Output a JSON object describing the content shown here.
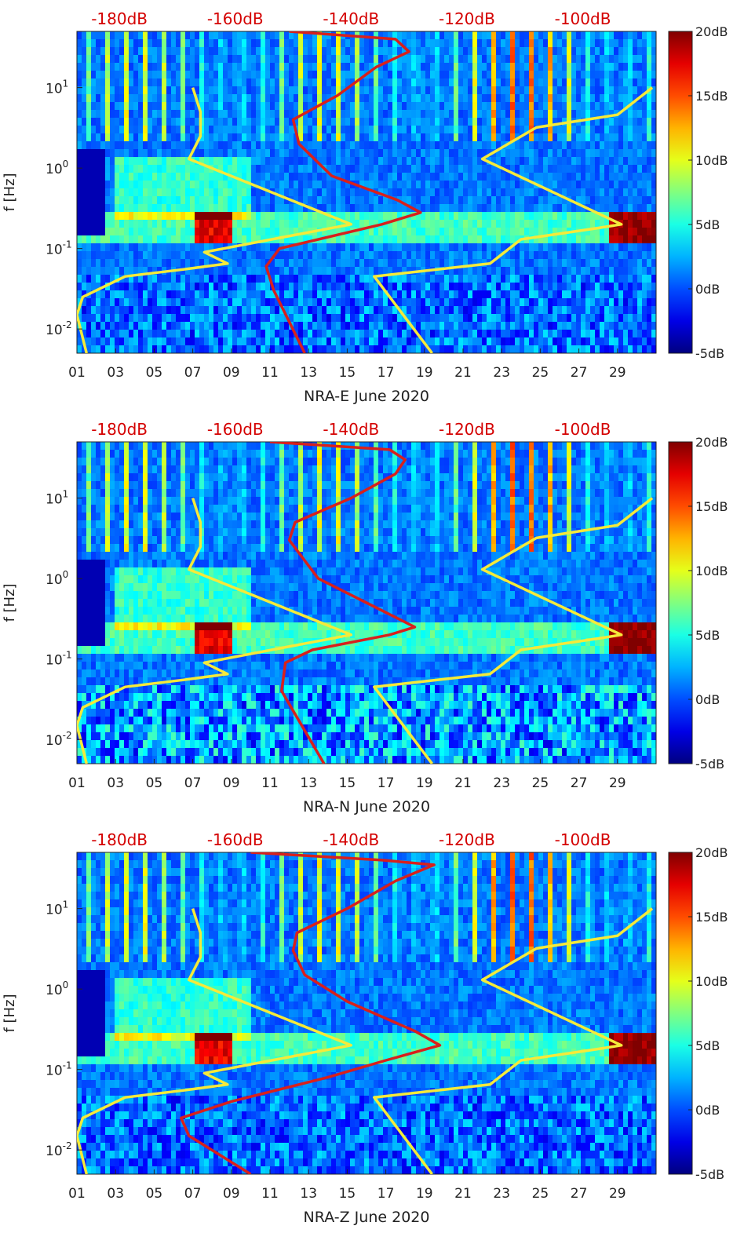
{
  "colors": {
    "yellow_curve": "#f5ea3a",
    "red_curve": "#d8201c",
    "db_label": "#d40000"
  },
  "chart_data": [
    {
      "type": "heatmap",
      "xlabel": "NRA-E June 2020",
      "ylabel": "f [Hz]",
      "x_ticks": [
        "01",
        "03",
        "05",
        "07",
        "09",
        "11",
        "13",
        "15",
        "17",
        "19",
        "21",
        "23",
        "25",
        "27",
        "29"
      ],
      "xlim": [
        1,
        31
      ],
      "ylim_hz": [
        0.005,
        50
      ],
      "y_ticks": [
        {
          "value": 0.01,
          "base": "10",
          "exp": "-2"
        },
        {
          "value": 0.1,
          "base": "10",
          "exp": "-1"
        },
        {
          "value": 1,
          "base": "10",
          "exp": "0"
        },
        {
          "value": 10,
          "base": "10",
          "exp": "1"
        }
      ],
      "top_db_labels": [
        {
          "text": "-180dB",
          "day": 3.2
        },
        {
          "text": "-160dB",
          "day": 9.2
        },
        {
          "text": "-140dB",
          "day": 15.2
        },
        {
          "text": "-120dB",
          "day": 21.2
        },
        {
          "text": "-100dB",
          "day": 27.2
        }
      ],
      "colorbar": {
        "labels": [
          "20dB",
          "15dB",
          "10dB",
          "5dB",
          "0dB",
          "-5dB"
        ],
        "range_db": [
          -5,
          20
        ]
      },
      "series": [
        {
          "name": "yellow-low-noise-model",
          "color": "yellow",
          "points": [
            [
              1.5,
              0.005
            ],
            [
              1.0,
              0.015
            ],
            [
              1.3,
              0.025
            ],
            [
              3.5,
              0.045
            ],
            [
              6.5,
              0.055
            ],
            [
              8.8,
              0.065
            ],
            [
              7.6,
              0.09
            ],
            [
              15.2,
              0.2
            ],
            [
              6.8,
              1.3
            ],
            [
              7.4,
              2.5
            ],
            [
              7.4,
              5
            ],
            [
              7.0,
              10
            ]
          ]
        },
        {
          "name": "yellow-high-noise-model",
          "color": "yellow",
          "points": [
            [
              19.4,
              0.005
            ],
            [
              16.4,
              0.045
            ],
            [
              22.4,
              0.065
            ],
            [
              24.0,
              0.13
            ],
            [
              28.0,
              0.18
            ],
            [
              29.2,
              0.2
            ],
            [
              22.0,
              1.3
            ],
            [
              24.8,
              3.2
            ],
            [
              29.0,
              4.6
            ],
            [
              30.8,
              10
            ]
          ]
        },
        {
          "name": "red-psd-curve",
          "color": "red",
          "points": [
            [
              12.8,
              0.005
            ],
            [
              11.2,
              0.03
            ],
            [
              10.8,
              0.06
            ],
            [
              11.5,
              0.1
            ],
            [
              16.8,
              0.2
            ],
            [
              18.8,
              0.28
            ],
            [
              17.6,
              0.4
            ],
            [
              14.2,
              0.8
            ],
            [
              12.5,
              2
            ],
            [
              12.2,
              4
            ],
            [
              14.5,
              8
            ],
            [
              16.5,
              18
            ],
            [
              18.2,
              28
            ],
            [
              17.5,
              40
            ],
            [
              12.0,
              50
            ]
          ]
        }
      ]
    },
    {
      "type": "heatmap",
      "xlabel": "NRA-N June 2020",
      "ylabel": "f [Hz]",
      "x_ticks": [
        "01",
        "03",
        "05",
        "07",
        "09",
        "11",
        "13",
        "15",
        "17",
        "19",
        "21",
        "23",
        "25",
        "27",
        "29"
      ],
      "xlim": [
        1,
        31
      ],
      "ylim_hz": [
        0.005,
        50
      ],
      "y_ticks": [
        {
          "value": 0.01,
          "base": "10",
          "exp": "-2"
        },
        {
          "value": 0.1,
          "base": "10",
          "exp": "-1"
        },
        {
          "value": 1,
          "base": "10",
          "exp": "0"
        },
        {
          "value": 10,
          "base": "10",
          "exp": "1"
        }
      ],
      "top_db_labels": [
        {
          "text": "-180dB",
          "day": 3.2
        },
        {
          "text": "-160dB",
          "day": 9.2
        },
        {
          "text": "-140dB",
          "day": 15.2
        },
        {
          "text": "-120dB",
          "day": 21.2
        },
        {
          "text": "-100dB",
          "day": 27.2
        }
      ],
      "colorbar": {
        "labels": [
          "20dB",
          "15dB",
          "10dB",
          "5dB",
          "0dB",
          "-5dB"
        ],
        "range_db": [
          -5,
          20
        ]
      },
      "series": [
        {
          "name": "yellow-low-noise-model",
          "color": "yellow",
          "points": [
            [
              1.5,
              0.005
            ],
            [
              1.0,
              0.015
            ],
            [
              1.3,
              0.025
            ],
            [
              3.5,
              0.045
            ],
            [
              6.5,
              0.055
            ],
            [
              8.8,
              0.065
            ],
            [
              7.6,
              0.09
            ],
            [
              15.2,
              0.2
            ],
            [
              6.8,
              1.3
            ],
            [
              7.4,
              2.5
            ],
            [
              7.4,
              5
            ],
            [
              7.0,
              10
            ]
          ]
        },
        {
          "name": "yellow-high-noise-model",
          "color": "yellow",
          "points": [
            [
              19.4,
              0.005
            ],
            [
              16.4,
              0.045
            ],
            [
              22.4,
              0.065
            ],
            [
              24.0,
              0.13
            ],
            [
              28.0,
              0.18
            ],
            [
              29.2,
              0.2
            ],
            [
              22.0,
              1.3
            ],
            [
              24.8,
              3.2
            ],
            [
              29.0,
              4.6
            ],
            [
              30.8,
              10
            ]
          ]
        },
        {
          "name": "red-psd-curve",
          "color": "red",
          "points": [
            [
              13.8,
              0.005
            ],
            [
              11.6,
              0.04
            ],
            [
              11.8,
              0.09
            ],
            [
              13.2,
              0.13
            ],
            [
              17.2,
              0.2
            ],
            [
              18.5,
              0.25
            ],
            [
              16.0,
              0.5
            ],
            [
              13.5,
              1.0
            ],
            [
              12.0,
              3
            ],
            [
              12.3,
              5
            ],
            [
              15.2,
              10
            ],
            [
              17.5,
              20
            ],
            [
              18.0,
              30
            ],
            [
              17.2,
              40
            ],
            [
              11.0,
              50
            ]
          ]
        }
      ]
    },
    {
      "type": "heatmap",
      "xlabel": "NRA-Z June 2020",
      "ylabel": "f [Hz]",
      "x_ticks": [
        "01",
        "03",
        "05",
        "07",
        "09",
        "11",
        "13",
        "15",
        "17",
        "19",
        "21",
        "23",
        "25",
        "27",
        "29"
      ],
      "xlim": [
        1,
        31
      ],
      "ylim_hz": [
        0.005,
        50
      ],
      "y_ticks": [
        {
          "value": 0.01,
          "base": "10",
          "exp": "-2"
        },
        {
          "value": 0.1,
          "base": "10",
          "exp": "-1"
        },
        {
          "value": 1,
          "base": "10",
          "exp": "0"
        },
        {
          "value": 10,
          "base": "10",
          "exp": "1"
        }
      ],
      "top_db_labels": [
        {
          "text": "-180dB",
          "day": 3.2
        },
        {
          "text": "-160dB",
          "day": 9.2
        },
        {
          "text": "-140dB",
          "day": 15.2
        },
        {
          "text": "-120dB",
          "day": 21.2
        },
        {
          "text": "-100dB",
          "day": 27.2
        }
      ],
      "colorbar": {
        "labels": [
          "20dB",
          "15dB",
          "10dB",
          "5dB",
          "0dB",
          "-5dB"
        ],
        "range_db": [
          -5,
          20
        ]
      },
      "series": [
        {
          "name": "yellow-low-noise-model",
          "color": "yellow",
          "points": [
            [
              1.5,
              0.005
            ],
            [
              1.0,
              0.015
            ],
            [
              1.3,
              0.025
            ],
            [
              3.5,
              0.045
            ],
            [
              6.5,
              0.055
            ],
            [
              8.8,
              0.065
            ],
            [
              7.6,
              0.09
            ],
            [
              15.2,
              0.2
            ],
            [
              6.8,
              1.3
            ],
            [
              7.4,
              2.5
            ],
            [
              7.4,
              5
            ],
            [
              7.0,
              10
            ]
          ]
        },
        {
          "name": "yellow-high-noise-model",
          "color": "yellow",
          "points": [
            [
              19.4,
              0.005
            ],
            [
              16.4,
              0.045
            ],
            [
              22.4,
              0.065
            ],
            [
              24.0,
              0.13
            ],
            [
              28.0,
              0.18
            ],
            [
              29.2,
              0.2
            ],
            [
              22.0,
              1.3
            ],
            [
              24.8,
              3.2
            ],
            [
              29.0,
              4.6
            ],
            [
              30.8,
              10
            ]
          ]
        },
        {
          "name": "red-psd-curve",
          "color": "red",
          "points": [
            [
              10.0,
              0.005
            ],
            [
              6.8,
              0.015
            ],
            [
              6.4,
              0.025
            ],
            [
              9.0,
              0.04
            ],
            [
              14.0,
              0.08
            ],
            [
              17.0,
              0.13
            ],
            [
              19.8,
              0.2
            ],
            [
              18.5,
              0.3
            ],
            [
              15.0,
              0.7
            ],
            [
              12.8,
              1.5
            ],
            [
              12.2,
              3
            ],
            [
              12.4,
              5
            ],
            [
              15.0,
              10
            ],
            [
              17.5,
              22
            ],
            [
              19.5,
              35
            ],
            [
              16.8,
              40
            ],
            [
              10.0,
              50
            ]
          ]
        }
      ]
    }
  ]
}
